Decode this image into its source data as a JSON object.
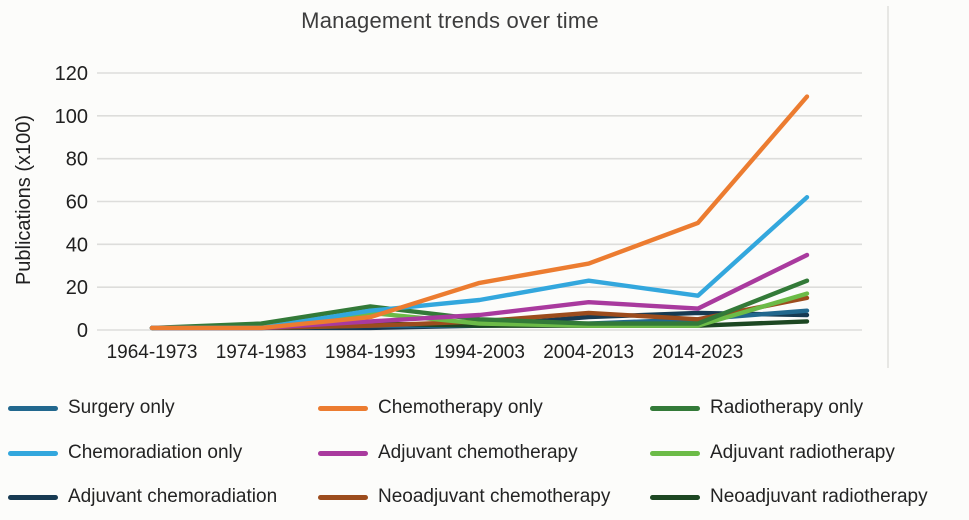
{
  "title": "Management trends over time",
  "y_axis": {
    "label": "Publications (x100)",
    "ticks": [
      0,
      20,
      40,
      60,
      80,
      100,
      120
    ]
  },
  "x_axis": {
    "labels": [
      "1964-1973",
      "1974-1983",
      "1984-1993",
      "1994-2003",
      "2004-2013",
      "2014-2023"
    ]
  },
  "chart_data": {
    "type": "line",
    "title": "Management trends over time",
    "xlabel": "",
    "ylabel": "Publications (x100)",
    "ylim": [
      0,
      120
    ],
    "grid": "horizontal",
    "legend_position": "bottom",
    "categories": [
      "1964-1973",
      "1974-1983",
      "1984-1993",
      "1994-2003",
      "2004-2013",
      "2014-2023",
      ""
    ],
    "series": [
      {
        "name": "Surgery only",
        "color": "#22688e",
        "values": [
          1,
          1,
          2,
          2,
          3,
          5,
          9
        ]
      },
      {
        "name": "Chemotherapy only",
        "color": "#ec7c30",
        "values": [
          1,
          1,
          6,
          22,
          31,
          50,
          109
        ]
      },
      {
        "name": "Radiotherapy only",
        "color": "#337a38",
        "values": [
          1,
          3,
          11,
          5,
          3,
          3,
          23
        ]
      },
      {
        "name": "Chemoradiation only",
        "color": "#33a7dd",
        "values": [
          1,
          1,
          9,
          14,
          23,
          16,
          62
        ]
      },
      {
        "name": "Adjuvant chemotherapy",
        "color": "#a93a9e",
        "values": [
          1,
          1,
          4,
          7,
          13,
          10,
          35
        ]
      },
      {
        "name": "Adjuvant radiotherapy",
        "color": "#6cbb47",
        "values": [
          1,
          2,
          8,
          3,
          2,
          2,
          17
        ]
      },
      {
        "name": "Adjuvant chemoradiation",
        "color": "#173a52",
        "values": [
          1,
          1,
          1,
          2,
          6,
          8,
          7
        ]
      },
      {
        "name": "Neoadjuvant chemotherapy",
        "color": "#9c4c1d",
        "values": [
          1,
          1,
          2,
          4,
          8,
          5,
          15
        ]
      },
      {
        "name": "Neoadjuvant radiotherapy",
        "color": "#1d4722",
        "values": [
          1,
          2,
          3,
          2,
          2,
          2,
          4
        ]
      }
    ]
  }
}
